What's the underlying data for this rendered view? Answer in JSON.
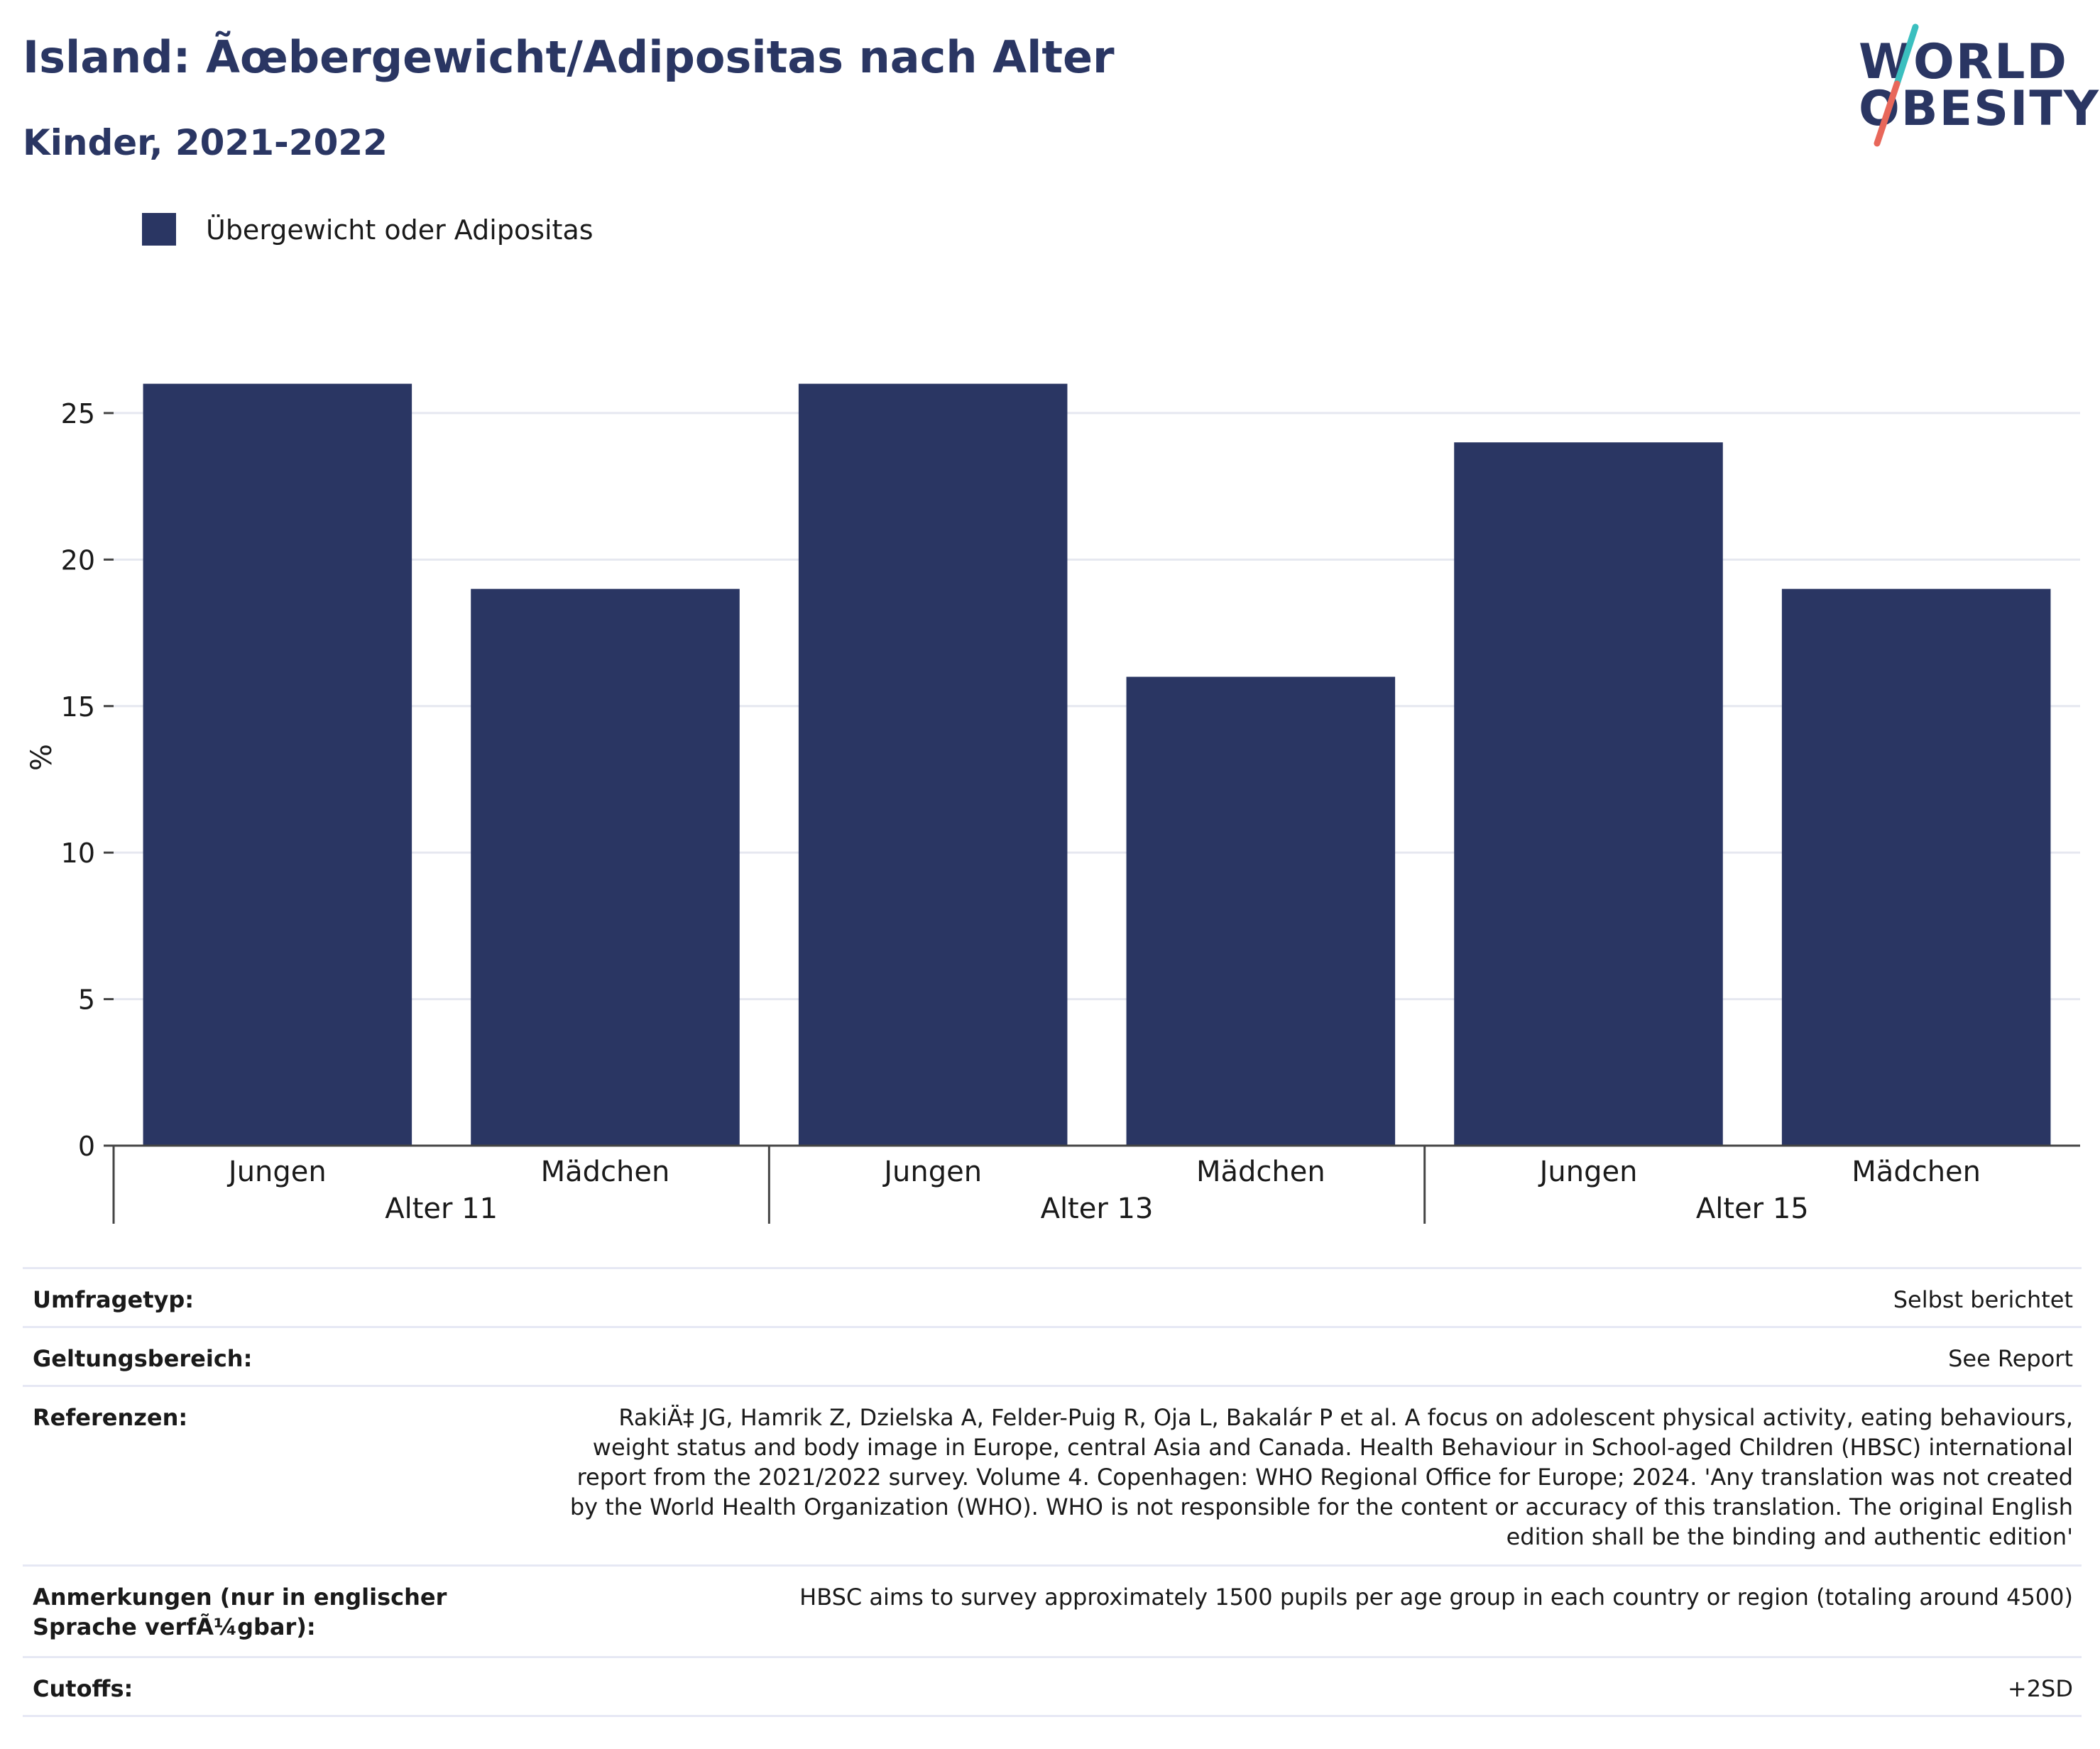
{
  "header": {
    "title": "Island: Ãœbergewicht/Adipositas nach Alter",
    "subtitle": "Kinder, 2021-2022"
  },
  "logo": {
    "line1": "WORLD",
    "line2": "OBESITY",
    "accent_teal": "#3bbfbf",
    "accent_red": "#e8675a"
  },
  "legend": {
    "label": "Übergewicht oder Adipositas",
    "color": "#2a3663"
  },
  "chart_data": {
    "type": "bar",
    "title": "Island: Ãœbergewicht/Adipositas nach Alter",
    "subtitle": "Kinder, 2021-2022",
    "ylabel": "%",
    "ylim": [
      0,
      26.5
    ],
    "yticks": [
      0,
      5,
      10,
      15,
      20,
      25
    ],
    "grid": true,
    "legend_position": "top-left",
    "groups": [
      "Alter 11",
      "Alter 13",
      "Alter 15"
    ],
    "categories": [
      "Jungen",
      "Mädchen",
      "Jungen",
      "Mädchen",
      "Jungen",
      "Mädchen"
    ],
    "series": [
      {
        "name": "Übergewicht oder Adipositas",
        "color": "#2a3663",
        "values": [
          26,
          19,
          26,
          16,
          24,
          19
        ]
      }
    ]
  },
  "info_table": [
    {
      "key": "Umfragetyp:",
      "value": "Selbst berichtet"
    },
    {
      "key": "Geltungsbereich:",
      "value": "See Report"
    },
    {
      "key": "Referenzen:",
      "value": "RakiÄ‡ JG, Hamrik Z, Dzielska A, Felder-Puig R, Oja L, Bakalár P et al. A focus on adolescent physical activity, eating behaviours, weight status and body image in Europe, central Asia and Canada. Health Behaviour in School-aged Children (HBSC) international report from the 2021/2022 survey. Volume 4. Copenhagen: WHO Regional Office for Europe; 2024. 'Any translation was not created by the World Health Organization (WHO). WHO is not responsible for the content or accuracy of this translation. The original English edition shall be the binding and authentic edition'"
    },
    {
      "key": "Anmerkungen (nur in englischer Sprache verfÃ¼gbar):",
      "value": "HBSC aims to survey approximately 1500 pupils per age group in each country or region (totaling around 4500)"
    },
    {
      "key": "Cutoffs:",
      "value": "+2SD"
    }
  ]
}
